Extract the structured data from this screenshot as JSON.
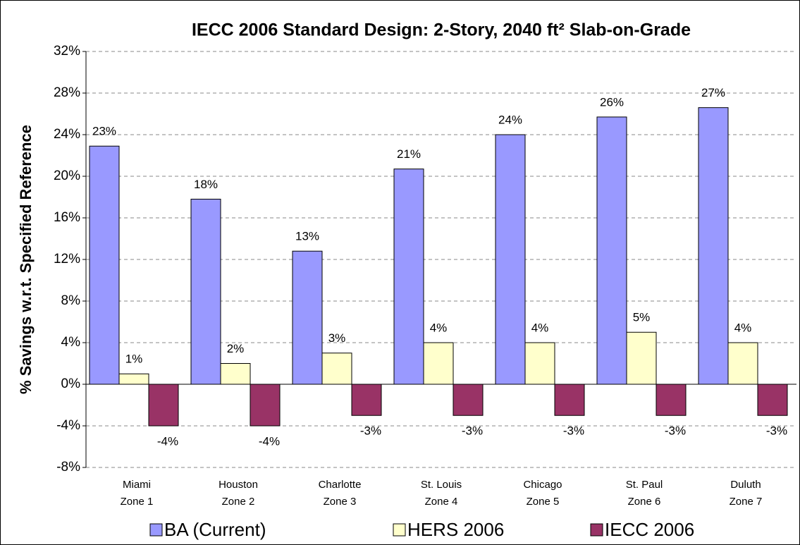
{
  "chart_data": {
    "type": "bar",
    "title": "IECC 2006 Standard Design: 2-Story, 2040 ft² Slab-on-Grade",
    "y_label": "% Savings w.r.t. Specified Reference",
    "categories": [
      [
        "Miami",
        "Zone 1"
      ],
      [
        "Houston",
        "Zone 2"
      ],
      [
        "Charlotte",
        "Zone 3"
      ],
      [
        "St. Louis",
        "Zone 4"
      ],
      [
        "Chicago",
        "Zone 5"
      ],
      [
        "St. Paul",
        "Zone 6"
      ],
      [
        "Duluth",
        "Zone 7"
      ]
    ],
    "series": [
      {
        "name": "BA (Current)",
        "color": "#9999ff",
        "values": [
          22.9,
          17.8,
          12.8,
          20.7,
          24.0,
          25.7,
          26.6
        ],
        "value_labels": [
          "23%",
          "18%",
          "13%",
          "21%",
          "24%",
          "26%",
          "27%"
        ]
      },
      {
        "name": "HERS 2006",
        "color": "#ffffcc",
        "values": [
          1,
          2,
          3,
          4,
          4,
          5,
          4
        ],
        "value_labels": [
          "1%",
          "2%",
          "3%",
          "4%",
          "4%",
          "5%",
          "4%"
        ]
      },
      {
        "name": "IECC 2006",
        "color": "#993366",
        "values": [
          -4,
          -4,
          -3,
          -3,
          -3,
          -3,
          -3
        ],
        "value_labels": [
          "-4%",
          "-4%",
          "-3%",
          "-3%",
          "-3%",
          "-3%",
          "-3%"
        ]
      }
    ],
    "ylim": [
      -8,
      32
    ],
    "yticks": [
      {
        "value": -8,
        "label": "-8%"
      },
      {
        "value": -4,
        "label": "-4%"
      },
      {
        "value": 0,
        "label": "0%"
      },
      {
        "value": 4,
        "label": "4%"
      },
      {
        "value": 8,
        "label": "8%"
      },
      {
        "value": 12,
        "label": "12%"
      },
      {
        "value": 16,
        "label": "16%"
      },
      {
        "value": 20,
        "label": "20%"
      },
      {
        "value": 24,
        "label": "24%"
      },
      {
        "value": 28,
        "label": "28%"
      },
      {
        "value": 32,
        "label": "32%"
      }
    ],
    "grid": true,
    "legend": "bottom"
  }
}
